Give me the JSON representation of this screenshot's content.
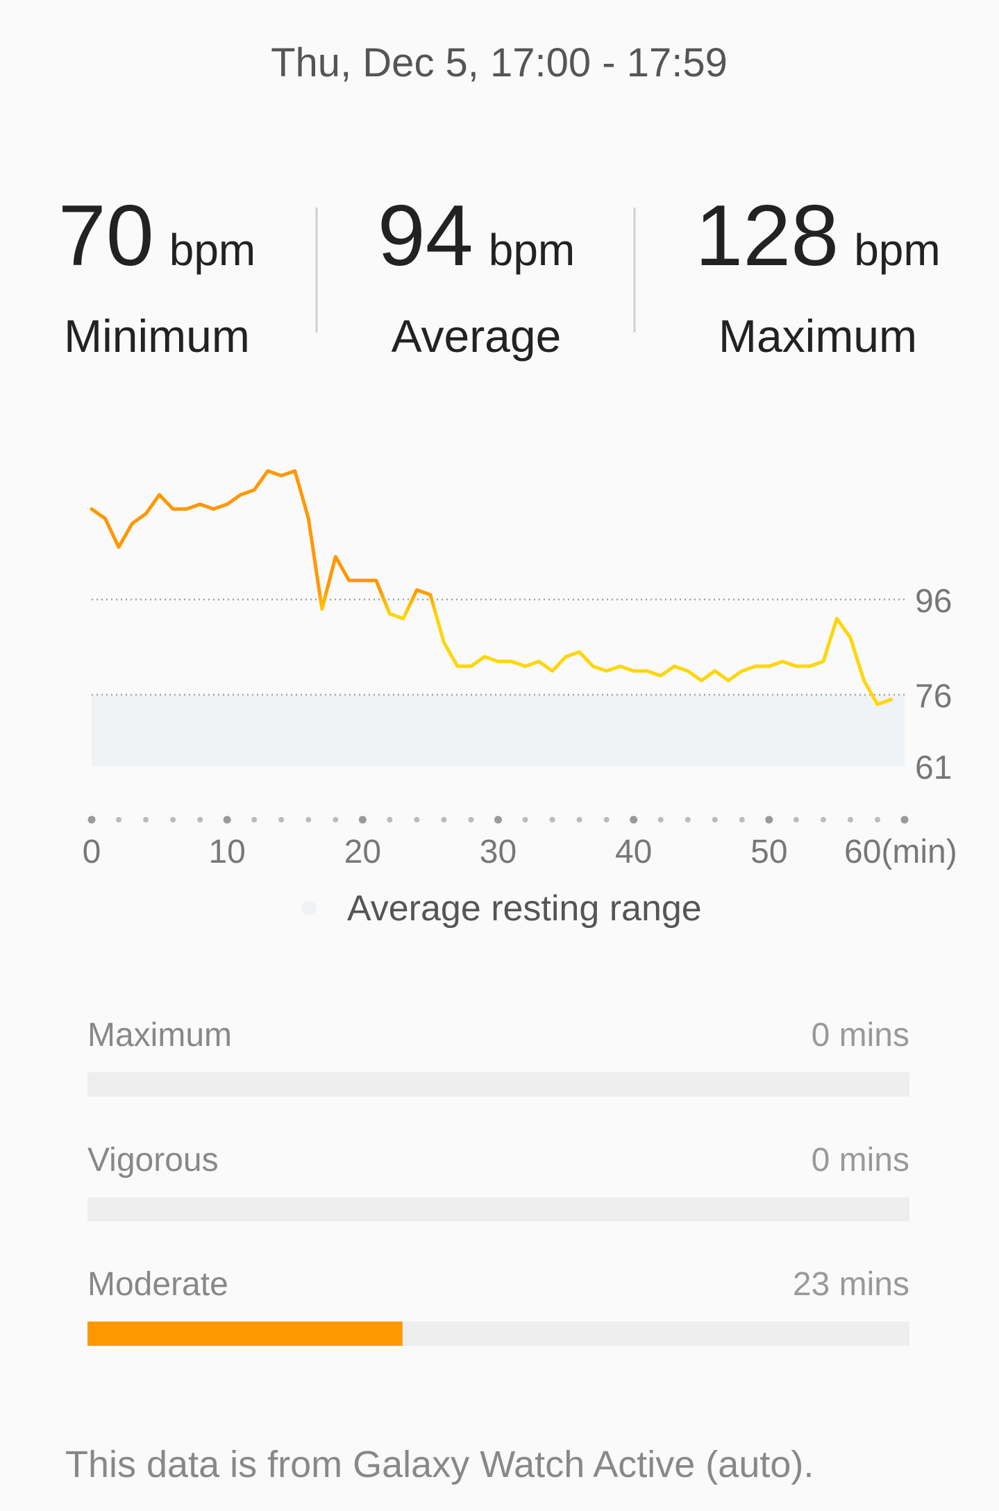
{
  "header": {
    "title": "Thu, Dec 5, 17:00 - 17:59"
  },
  "stats": [
    {
      "value": 70,
      "unit": "bpm",
      "label": "Minimum"
    },
    {
      "value": 94,
      "unit": "bpm",
      "label": "Average"
    },
    {
      "value": 128,
      "unit": "bpm",
      "label": "Maximum"
    }
  ],
  "chart_data": {
    "type": "line",
    "x": [
      0,
      1,
      2,
      3,
      4,
      5,
      6,
      7,
      8,
      9,
      10,
      11,
      12,
      13,
      14,
      15,
      16,
      17,
      18,
      19,
      20,
      21,
      22,
      23,
      24,
      25,
      26,
      27,
      28,
      29,
      30,
      31,
      32,
      33,
      34,
      35,
      36,
      37,
      38,
      39,
      40,
      41,
      42,
      43,
      44,
      45,
      46,
      47,
      48,
      49,
      50,
      51,
      52,
      53,
      54,
      55,
      56,
      57,
      58,
      59
    ],
    "values": [
      115,
      113,
      107,
      112,
      114,
      118,
      115,
      115,
      116,
      115,
      116,
      118,
      119,
      123,
      122,
      123,
      113,
      94,
      105,
      100,
      100,
      100,
      93,
      92,
      98,
      97,
      87,
      82,
      82,
      84,
      83,
      83,
      82,
      83,
      81,
      84,
      85,
      82,
      81,
      82,
      81,
      81,
      80,
      82,
      81,
      79,
      81,
      79,
      81,
      82,
      82,
      83,
      82,
      82,
      83,
      92,
      88,
      79,
      74,
      75
    ],
    "color_high": "#ff9800",
    "color_low": "#ffd60a",
    "xlim": [
      0,
      60
    ],
    "xticks": [
      0,
      10,
      20,
      30,
      40,
      50,
      {
        "value": 60,
        "label": "60(min)"
      }
    ],
    "ylim": [
      61,
      127
    ],
    "yticks": [
      61,
      76,
      96
    ],
    "grid": true,
    "resting_range": [
      61,
      76
    ],
    "resting_color": "#eff3f5",
    "legend": "Average resting range"
  },
  "zones": [
    {
      "name": "Maximum",
      "value": 0,
      "value_label": "0 mins"
    },
    {
      "name": "Vigorous",
      "value": 0,
      "value_label": "0 mins"
    },
    {
      "name": "Moderate",
      "value": 23,
      "value_label": "23 mins"
    }
  ],
  "zone_color": "#ff9800",
  "footer": "This data is from Galaxy Watch Active (auto)."
}
